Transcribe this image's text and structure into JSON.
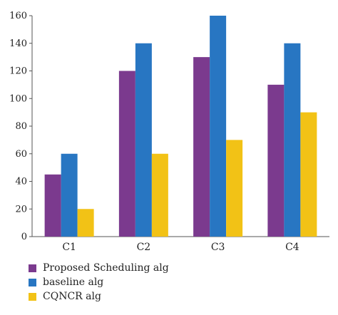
{
  "chart_data": {
    "type": "bar",
    "categories": [
      "C1",
      "C2",
      "C3",
      "C4"
    ],
    "series": [
      {
        "name": "Proposed Scheduling alg",
        "values": [
          45,
          120,
          130,
          110
        ],
        "color": "#7b3a8e"
      },
      {
        "name": "baseline alg",
        "values": [
          60,
          140,
          160,
          140
        ],
        "color": "#2876c2"
      },
      {
        "name": "CQNCR alg",
        "values": [
          20,
          60,
          70,
          90
        ],
        "color": "#f2c216"
      }
    ],
    "ylim": [
      0,
      160
    ],
    "yticks": [
      0,
      20,
      40,
      60,
      80,
      100,
      120,
      140,
      160
    ],
    "title": "",
    "xlabel": "",
    "ylabel": "",
    "grid": false,
    "legend_position": "bottom-left"
  }
}
